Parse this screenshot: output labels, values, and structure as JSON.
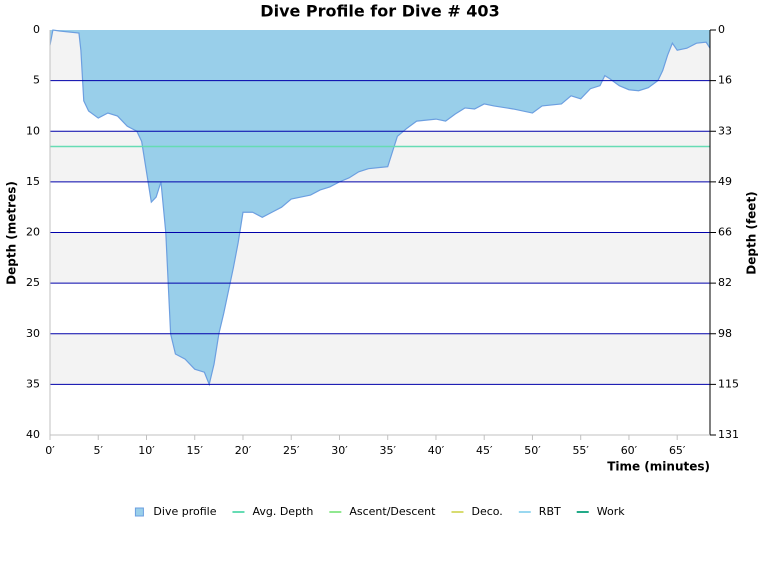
{
  "chart_data": {
    "type": "area",
    "title": "Dive Profile for Dive # 403",
    "x_label": "Time (minutes)",
    "y_label": "Depth (metres)",
    "y2_label": "Depth (feet)",
    "xlim": [
      0,
      68.4
    ],
    "xticks": [
      {
        "value": 0,
        "label": "0′"
      },
      {
        "value": 5,
        "label": "5′"
      },
      {
        "value": 10,
        "label": "10′"
      },
      {
        "value": 15,
        "label": "15′"
      },
      {
        "value": 20,
        "label": "20′"
      },
      {
        "value": 25,
        "label": "25′"
      },
      {
        "value": 30,
        "label": "30′"
      },
      {
        "value": 35,
        "label": "35′"
      },
      {
        "value": 40,
        "label": "40′"
      },
      {
        "value": 45,
        "label": "45′"
      },
      {
        "value": 50,
        "label": "50′"
      },
      {
        "value": 55,
        "label": "55′"
      },
      {
        "value": 60,
        "label": "60′"
      },
      {
        "value": 65,
        "label": "65′"
      }
    ],
    "ylim": [
      0,
      40
    ],
    "y_inverted": true,
    "yticks": [
      0,
      5,
      10,
      15,
      20,
      25,
      30,
      35,
      40
    ],
    "y2lim": [
      0,
      131.2
    ],
    "y2ticks": [
      0,
      {
        "value": 16.4,
        "label": "16"
      },
      {
        "value": 32.8,
        "label": "33"
      },
      {
        "value": 49.2,
        "label": "49"
      },
      {
        "value": 65.6,
        "label": "66"
      },
      82,
      {
        "value": 98.4,
        "label": "98"
      },
      {
        "value": 114.8,
        "label": "115"
      },
      {
        "value": 131.2,
        "label": "131"
      }
    ],
    "grid": true,
    "grid_color": "#0000aa",
    "x": [
      0,
      0.3,
      1,
      3,
      3.2,
      3.5,
      4,
      5,
      6,
      7,
      8,
      9,
      9.5,
      10,
      10.5,
      11,
      11.5,
      12,
      12.5,
      13,
      14,
      15,
      16,
      16.5,
      17,
      17.5,
      18,
      19,
      19.5,
      20,
      21,
      22,
      23,
      24,
      25,
      26,
      27,
      28,
      29,
      30,
      31,
      32,
      33,
      35,
      35.5,
      36,
      37,
      38,
      40,
      41,
      42,
      43,
      44,
      45,
      46,
      48,
      50,
      51,
      53,
      54,
      55,
      56,
      57,
      57.5,
      58,
      59,
      60,
      61,
      62,
      63,
      63.5,
      64,
      64.5,
      65,
      66,
      67,
      68,
      68.4
    ],
    "series": [
      {
        "name": "Dive profile",
        "color": "#99cfea",
        "stroke": "#6c9fe0",
        "values": [
          1.5,
          0,
          0.1,
          0.3,
          2,
          7,
          8,
          8.7,
          8.2,
          8.5,
          9.5,
          10,
          11,
          14,
          17,
          16.5,
          15,
          20,
          30,
          32,
          32.5,
          33.5,
          33.8,
          35,
          33,
          30,
          28,
          23.5,
          21,
          18,
          18,
          18.5,
          18,
          17.5,
          16.7,
          16.5,
          16.3,
          15.8,
          15.5,
          15,
          14.6,
          14,
          13.7,
          13.5,
          12,
          10.5,
          9.7,
          9,
          8.8,
          9,
          8.3,
          7.7,
          7.8,
          7.3,
          7.5,
          7.8,
          8.2,
          7.5,
          7.3,
          6.5,
          6.8,
          5.8,
          5.5,
          4.5,
          4.8,
          5.5,
          5.9,
          6,
          5.7,
          5,
          4,
          2.5,
          1.3,
          2,
          1.8,
          1.3,
          1.2,
          1.8
        ]
      },
      {
        "name": "Avg. Depth",
        "color": "#66dcb4",
        "value": 11.5
      },
      {
        "name": "Ascent/Descent",
        "color": "#90e890"
      },
      {
        "name": "Deco.",
        "color": "#d8dc70"
      },
      {
        "name": "RBT",
        "color": "#9ad8f0"
      },
      {
        "name": "Work",
        "color": "#22aa88"
      }
    ]
  }
}
